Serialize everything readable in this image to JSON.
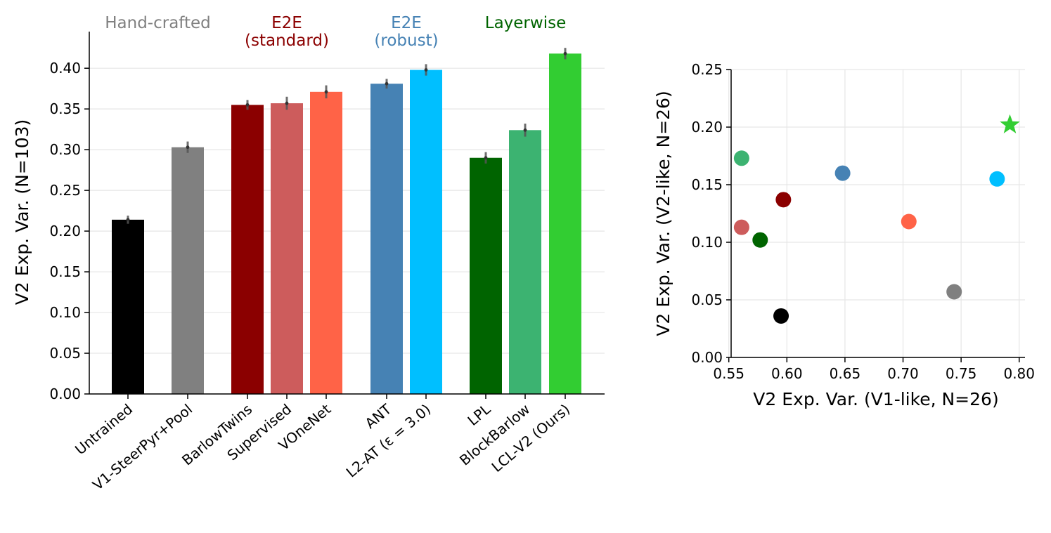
{
  "chart_data": [
    {
      "type": "bar",
      "ylabel": "V2 Exp. Var. (N=103)",
      "ylim": [
        0,
        0.445
      ],
      "yticks": [
        "0.00",
        "0.05",
        "0.10",
        "0.15",
        "0.20",
        "0.25",
        "0.30",
        "0.35",
        "0.40"
      ],
      "grid": true,
      "categories": [
        "Untrained",
        "V1-SteerPyr+Pool",
        "BarlowTwins",
        "Supervised",
        "VOneNet",
        "ANT",
        "L2-AT (ε = 3.0)",
        "LPL",
        "BlockBarlow",
        "LCL-V2 (Ours)"
      ],
      "values": [
        0.214,
        0.303,
        0.355,
        0.357,
        0.371,
        0.381,
        0.398,
        0.29,
        0.324,
        0.418
      ],
      "errors": [
        0.005,
        0.007,
        0.006,
        0.008,
        0.008,
        0.006,
        0.007,
        0.007,
        0.008,
        0.007
      ],
      "colors": [
        "#000000",
        "#808080",
        "#8b0000",
        "#cd5c5c",
        "#ff6347",
        "#4682b4",
        "#00bfff",
        "#006400",
        "#3cb371",
        "#32cd32"
      ],
      "groups": [
        {
          "label": "Hand-crafted",
          "lines": [
            "Hand-crafted"
          ],
          "color": "#808080",
          "members": [
            0,
            1
          ]
        },
        {
          "label": "E2E (standard)",
          "lines": [
            "E2E",
            "(standard)"
          ],
          "color": "#8b0000",
          "members": [
            2,
            3,
            4
          ]
        },
        {
          "label": "E2E (robust)",
          "lines": [
            "E2E",
            "(robust)"
          ],
          "color": "#4682b4",
          "members": [
            5,
            6
          ]
        },
        {
          "label": "Layerwise",
          "lines": [
            "Layerwise"
          ],
          "color": "#006400",
          "members": [
            7,
            8,
            9
          ]
        }
      ]
    },
    {
      "type": "scatter",
      "xlabel": "V2 Exp. Var. (V1-like, N=26)",
      "ylabel": "V2 Exp. Var. (V2-like, N=26)",
      "xlim": [
        0.552,
        0.805
      ],
      "ylim": [
        0,
        0.25
      ],
      "xticks": [
        "0.55",
        "0.60",
        "0.65",
        "0.70",
        "0.75",
        "0.80"
      ],
      "yticks": [
        "0.00",
        "0.05",
        "0.10",
        "0.15",
        "0.20",
        "0.25"
      ],
      "grid": true,
      "points": [
        {
          "name": "Untrained",
          "x": 0.595,
          "y": 0.036,
          "color": "#000000",
          "marker": "circle"
        },
        {
          "name": "V1-SteerPyr+Pool",
          "x": 0.744,
          "y": 0.057,
          "color": "#808080",
          "marker": "circle"
        },
        {
          "name": "BarlowTwins",
          "x": 0.597,
          "y": 0.137,
          "color": "#8b0000",
          "marker": "circle"
        },
        {
          "name": "Supervised",
          "x": 0.561,
          "y": 0.113,
          "color": "#cd5c5c",
          "marker": "circle"
        },
        {
          "name": "VOneNet",
          "x": 0.705,
          "y": 0.118,
          "color": "#ff6347",
          "marker": "circle"
        },
        {
          "name": "ANT",
          "x": 0.648,
          "y": 0.16,
          "color": "#4682b4",
          "marker": "circle"
        },
        {
          "name": "L2-AT (ε = 3.0)",
          "x": 0.781,
          "y": 0.155,
          "color": "#00bfff",
          "marker": "circle"
        },
        {
          "name": "LPL",
          "x": 0.577,
          "y": 0.102,
          "color": "#006400",
          "marker": "circle"
        },
        {
          "name": "BlockBarlow",
          "x": 0.561,
          "y": 0.173,
          "color": "#3cb371",
          "marker": "circle"
        },
        {
          "name": "LCL-V2 (Ours)",
          "x": 0.792,
          "y": 0.202,
          "color": "#32cd32",
          "marker": "star"
        }
      ]
    }
  ]
}
